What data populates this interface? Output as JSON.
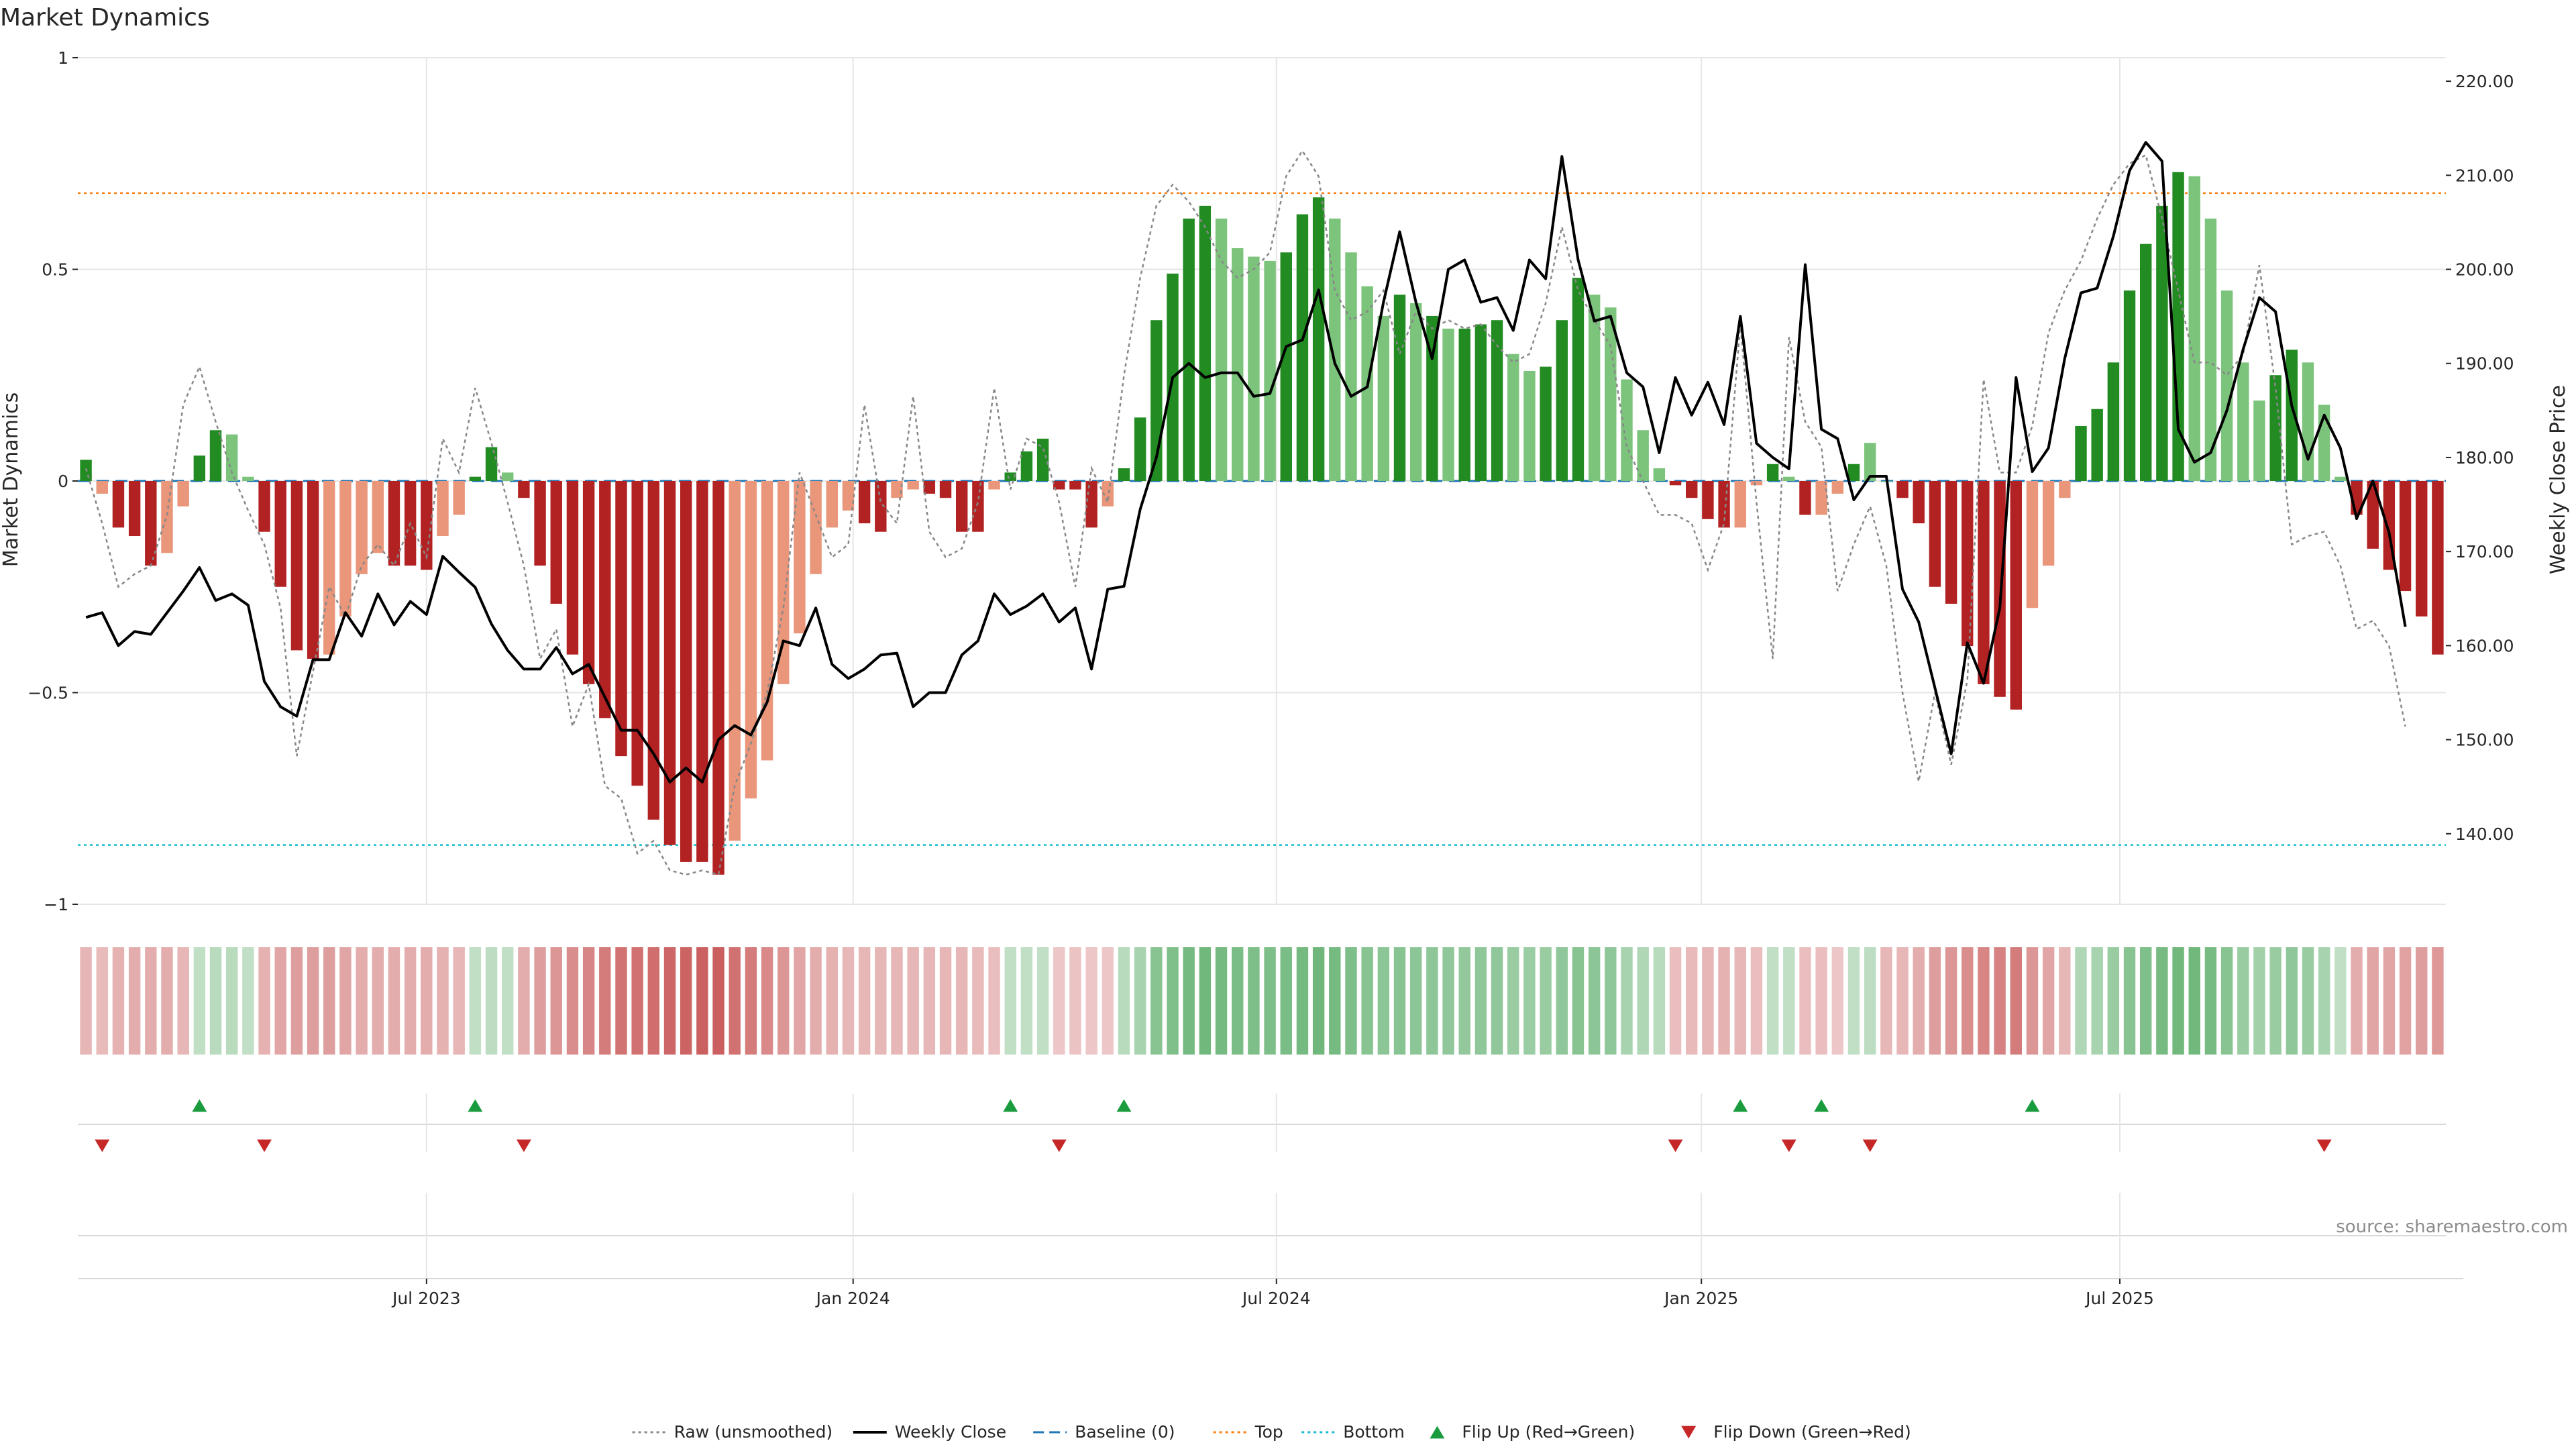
{
  "title": "Market Dynamics",
  "source": "source: sharemaestro.com",
  "colors": {
    "green_strong": "#228b22",
    "green_light": "#7cc47c",
    "red_strong": "#b22222",
    "red_light": "#e9967a",
    "close": "#000000",
    "raw": "#888888",
    "baseline": "#1f77b4",
    "top": "#ff7f0e",
    "bottom": "#17becf",
    "flip_up": "#1a9c3e",
    "flip_down": "#c62828",
    "grid": "#e6e6e6"
  },
  "chart_data": {
    "type": "bar",
    "title": "Market Dynamics",
    "ylabel_left": "Market Dynamics",
    "ylabel_right": "Weekly Close Price",
    "ylim_left": [
      -1,
      1
    ],
    "ylim_right": [
      132.5,
      222.5
    ],
    "left_ticks": [
      "1",
      "0.5",
      "0",
      "−0.5",
      "−1"
    ],
    "left_tick_values": [
      1,
      0.5,
      0,
      -0.5,
      -1
    ],
    "right_ticks": [
      "220.00",
      "210.00",
      "200.00",
      "190.00",
      "180.00",
      "170.00",
      "160.00",
      "150.00",
      "140.00"
    ],
    "right_tick_values": [
      220,
      210,
      200,
      190,
      180,
      170,
      160,
      150,
      140
    ],
    "x_ticks": [
      "Jul 2023",
      "Jan 2024",
      "Jul 2024",
      "Jan 2025",
      "Jul 2025"
    ],
    "x_tick_index": [
      21,
      47.3,
      73.4,
      99.6,
      125.4
    ],
    "grid": true,
    "legend_position": "bottom-center",
    "top_level": 0.68,
    "bottom_level": -0.86,
    "baseline": 0,
    "market_dynamics": [
      0.05,
      -0.03,
      -0.11,
      -0.13,
      -0.2,
      -0.17,
      -0.06,
      0.06,
      0.12,
      0.11,
      0.01,
      -0.12,
      -0.25,
      -0.4,
      -0.42,
      -0.41,
      -0.32,
      -0.22,
      -0.17,
      -0.2,
      -0.2,
      -0.21,
      -0.13,
      -0.08,
      0.01,
      0.08,
      0.02,
      -0.04,
      -0.2,
      -0.29,
      -0.41,
      -0.48,
      -0.56,
      -0.65,
      -0.72,
      -0.8,
      -0.86,
      -0.9,
      -0.9,
      -0.93,
      -0.85,
      -0.75,
      -0.66,
      -0.48,
      -0.36,
      -0.22,
      -0.11,
      -0.07,
      -0.1,
      -0.12,
      -0.04,
      -0.02,
      -0.03,
      -0.04,
      -0.12,
      -0.12,
      -0.02,
      0.02,
      0.07,
      0.1,
      -0.02,
      -0.02,
      -0.11,
      -0.06,
      0.03,
      0.15,
      0.38,
      0.49,
      0.62,
      0.65,
      0.62,
      0.55,
      0.53,
      0.52,
      0.54,
      0.63,
      0.67,
      0.62,
      0.54,
      0.46,
      0.39,
      0.44,
      0.42,
      0.39,
      0.36,
      0.36,
      0.37,
      0.38,
      0.3,
      0.26,
      0.27,
      0.38,
      0.48,
      0.44,
      0.41,
      0.24,
      0.12,
      0.03,
      -0.01,
      -0.04,
      -0.09,
      -0.11,
      -0.11,
      -0.01,
      0.04,
      0.01,
      -0.08,
      -0.08,
      -0.03,
      0.04,
      0.09,
      0.0,
      -0.04,
      -0.1,
      -0.25,
      -0.29,
      -0.39,
      -0.48,
      -0.51,
      -0.54,
      -0.3,
      -0.2,
      -0.04,
      0.13,
      0.17,
      0.28,
      0.45,
      0.56,
      0.65,
      0.73,
      0.72,
      0.62,
      0.45,
      0.28,
      0.19,
      0.25,
      0.31,
      0.28,
      0.18,
      0.01,
      -0.08,
      -0.16,
      -0.21,
      -0.26,
      -0.32,
      -0.41
    ],
    "shade": [
      1,
      0,
      1,
      1,
      1,
      0,
      0,
      1,
      1,
      0,
      0,
      1,
      1,
      1,
      1,
      0,
      0,
      0,
      0,
      1,
      1,
      1,
      0,
      0,
      1,
      1,
      0,
      1,
      1,
      1,
      1,
      1,
      1,
      1,
      1,
      1,
      1,
      1,
      1,
      1,
      0,
      0,
      0,
      0,
      0,
      0,
      0,
      0,
      1,
      1,
      0,
      0,
      1,
      1,
      1,
      1,
      0,
      1,
      1,
      1,
      1,
      1,
      1,
      0,
      1,
      1,
      1,
      1,
      1,
      1,
      0,
      0,
      0,
      0,
      1,
      1,
      1,
      0,
      0,
      0,
      0,
      1,
      0,
      1,
      0,
      1,
      1,
      1,
      0,
      0,
      1,
      1,
      1,
      0,
      0,
      0,
      0,
      0,
      1,
      1,
      1,
      1,
      0,
      0,
      1,
      0,
      1,
      0,
      0,
      1,
      0,
      0,
      1,
      1,
      1,
      1,
      1,
      1,
      1,
      1,
      0,
      0,
      0,
      1,
      1,
      1,
      1,
      1,
      1,
      1,
      0,
      0,
      0,
      0,
      0,
      1,
      1,
      0,
      0,
      0,
      1,
      1,
      1,
      1,
      1,
      1,
      1
    ],
    "weekly_close": [
      163,
      163.5,
      160,
      161.5,
      161.2,
      163.5,
      165.8,
      168.3,
      164.8,
      165.5,
      164.3,
      156.2,
      153.5,
      152.5,
      158.5,
      158.5,
      163.5,
      161,
      165.5,
      162.2,
      164.7,
      163.3,
      169.5,
      167.8,
      166.2,
      162.3,
      159.5,
      157.5,
      157.5,
      159.8,
      157,
      158,
      154.5,
      151,
      151,
      148.5,
      145.5,
      147,
      145.5,
      150,
      151.5,
      150.5,
      154,
      160.5,
      160,
      164,
      158,
      156.5,
      157.5,
      159,
      159.2,
      153.5,
      155,
      155,
      159,
      160.5,
      165.5,
      163.3,
      164.2,
      165.5,
      162.5,
      164,
      157.5,
      166,
      166.3,
      174.5,
      180,
      188.5,
      190,
      188.5,
      189,
      189,
      186.5,
      186.8,
      191.8,
      192.5,
      197.8,
      190,
      186.5,
      187.5,
      196.5,
      204,
      196.5,
      190.5,
      200,
      201,
      196.5,
      197,
      193.5,
      201,
      199,
      212,
      201,
      194.5,
      195,
      189,
      187.5,
      180.5,
      188.5,
      184.5,
      188,
      183.5,
      195,
      181.5,
      180,
      178.8,
      200.5,
      183,
      182,
      175.5,
      178,
      178,
      166,
      162.5,
      155.5,
      148.5,
      160.3,
      156,
      164,
      188.5,
      178.5,
      181,
      190.5,
      197.5,
      198,
      203.5,
      210.5,
      213.5,
      211.5,
      183,
      179.5,
      180.5,
      185,
      191.5,
      197,
      195.5,
      185.5,
      179.8,
      184.5,
      181,
      173.5,
      177.5,
      172,
      162
    ],
    "raw_smoothing_input": [
      0.03,
      -0.1,
      -0.25,
      -0.22,
      -0.2,
      -0.08,
      0.18,
      0.27,
      0.14,
      0.02,
      -0.07,
      -0.15,
      -0.3,
      -0.65,
      -0.45,
      -0.25,
      -0.32,
      -0.2,
      -0.15,
      -0.2,
      -0.1,
      -0.18,
      0.1,
      0.02,
      0.22,
      0.09,
      -0.05,
      -0.2,
      -0.42,
      -0.35,
      -0.58,
      -0.48,
      -0.72,
      -0.75,
      -0.88,
      -0.85,
      -0.92,
      -0.93,
      -0.92,
      -0.93,
      -0.72,
      -0.62,
      -0.5,
      -0.3,
      0.02,
      -0.08,
      -0.18,
      -0.15,
      0.18,
      -0.05,
      -0.1,
      0.2,
      -0.12,
      -0.18,
      -0.16,
      -0.05,
      0.22,
      -0.02,
      0.1,
      0.08,
      -0.05,
      -0.25,
      0.03,
      -0.05,
      0.25,
      0.48,
      0.65,
      0.7,
      0.66,
      0.6,
      0.52,
      0.48,
      0.5,
      0.54,
      0.72,
      0.78,
      0.72,
      0.45,
      0.38,
      0.4,
      0.45,
      0.3,
      0.4,
      0.36,
      0.38,
      0.36,
      0.37,
      0.32,
      0.28,
      0.3,
      0.42,
      0.6,
      0.45,
      0.38,
      0.32,
      0.08,
      0.0,
      -0.08,
      -0.08,
      -0.1,
      -0.21,
      -0.1,
      0.37,
      -0.05,
      -0.42,
      0.34,
      0.14,
      0.08,
      -0.26,
      -0.15,
      -0.06,
      -0.2,
      -0.5,
      -0.71,
      -0.5,
      -0.67,
      -0.47,
      0.24,
      0.02,
      0.02,
      0.13,
      0.35,
      0.45,
      0.52,
      0.62,
      0.7,
      0.75,
      0.77,
      0.62,
      0.45,
      0.28,
      0.28,
      0.25,
      0.3,
      0.51,
      0.22,
      -0.15,
      -0.13,
      -0.12,
      -0.2,
      -0.35,
      -0.33,
      -0.39,
      -0.58
    ],
    "color_strip": [
      -0.2,
      -0.18,
      -0.22,
      -0.25,
      -0.25,
      -0.25,
      -0.2,
      0.15,
      0.2,
      0.2,
      0.15,
      -0.22,
      -0.3,
      -0.35,
      -0.35,
      -0.35,
      -0.3,
      -0.25,
      -0.25,
      -0.25,
      -0.25,
      -0.25,
      -0.22,
      -0.2,
      0.15,
      0.18,
      0.15,
      -0.25,
      -0.35,
      -0.4,
      -0.45,
      -0.5,
      -0.55,
      -0.6,
      -0.62,
      -0.65,
      -0.68,
      -0.7,
      -0.72,
      -0.74,
      -0.62,
      -0.55,
      -0.48,
      -0.4,
      -0.3,
      -0.25,
      -0.22,
      -0.2,
      -0.2,
      -0.2,
      -0.2,
      -0.2,
      -0.2,
      -0.2,
      -0.2,
      -0.18,
      -0.15,
      0.15,
      0.15,
      0.15,
      -0.1,
      -0.12,
      -0.1,
      -0.1,
      0.2,
      0.3,
      0.5,
      0.55,
      0.62,
      0.64,
      0.62,
      0.58,
      0.56,
      0.56,
      0.58,
      0.62,
      0.66,
      0.62,
      0.56,
      0.5,
      0.48,
      0.5,
      0.48,
      0.46,
      0.45,
      0.44,
      0.45,
      0.45,
      0.4,
      0.38,
      0.4,
      0.45,
      0.5,
      0.48,
      0.45,
      0.3,
      0.25,
      0.2,
      -0.15,
      -0.18,
      -0.2,
      -0.22,
      -0.2,
      -0.15,
      0.15,
      0.15,
      -0.15,
      -0.15,
      -0.1,
      0.15,
      0.18,
      -0.2,
      -0.2,
      -0.25,
      -0.35,
      -0.4,
      -0.45,
      -0.5,
      -0.52,
      -0.55,
      -0.4,
      -0.3,
      -0.2,
      0.25,
      0.3,
      0.4,
      0.5,
      0.55,
      0.6,
      0.64,
      0.64,
      0.6,
      0.5,
      0.4,
      0.35,
      0.4,
      0.45,
      0.4,
      0.3,
      0.15,
      -0.25,
      -0.3,
      -0.3,
      -0.32,
      -0.35,
      -0.38
    ],
    "flip_up_index": [
      7,
      24,
      57,
      64,
      102,
      107,
      120
    ],
    "flip_down_index": [
      1,
      11,
      27,
      60,
      98,
      105,
      110,
      138
    ],
    "legend": [
      {
        "label": "Raw (unsmoothed)",
        "kind": "line-dotted",
        "color": "#888888"
      },
      {
        "label": "Weekly Close",
        "kind": "line",
        "color": "#000000"
      },
      {
        "label": "Baseline (0)",
        "kind": "line-dashed",
        "color": "#1f77b4"
      },
      {
        "label": "Top",
        "kind": "line-dotted",
        "color": "#ff7f0e"
      },
      {
        "label": "Bottom",
        "kind": "line-dotted",
        "color": "#17becf"
      },
      {
        "label": "Flip Up (Red→Green)",
        "kind": "tri-up",
        "color": "#1a9c3e"
      },
      {
        "label": "Flip Down (Green→Red)",
        "kind": "tri-down",
        "color": "#c62828"
      }
    ]
  }
}
